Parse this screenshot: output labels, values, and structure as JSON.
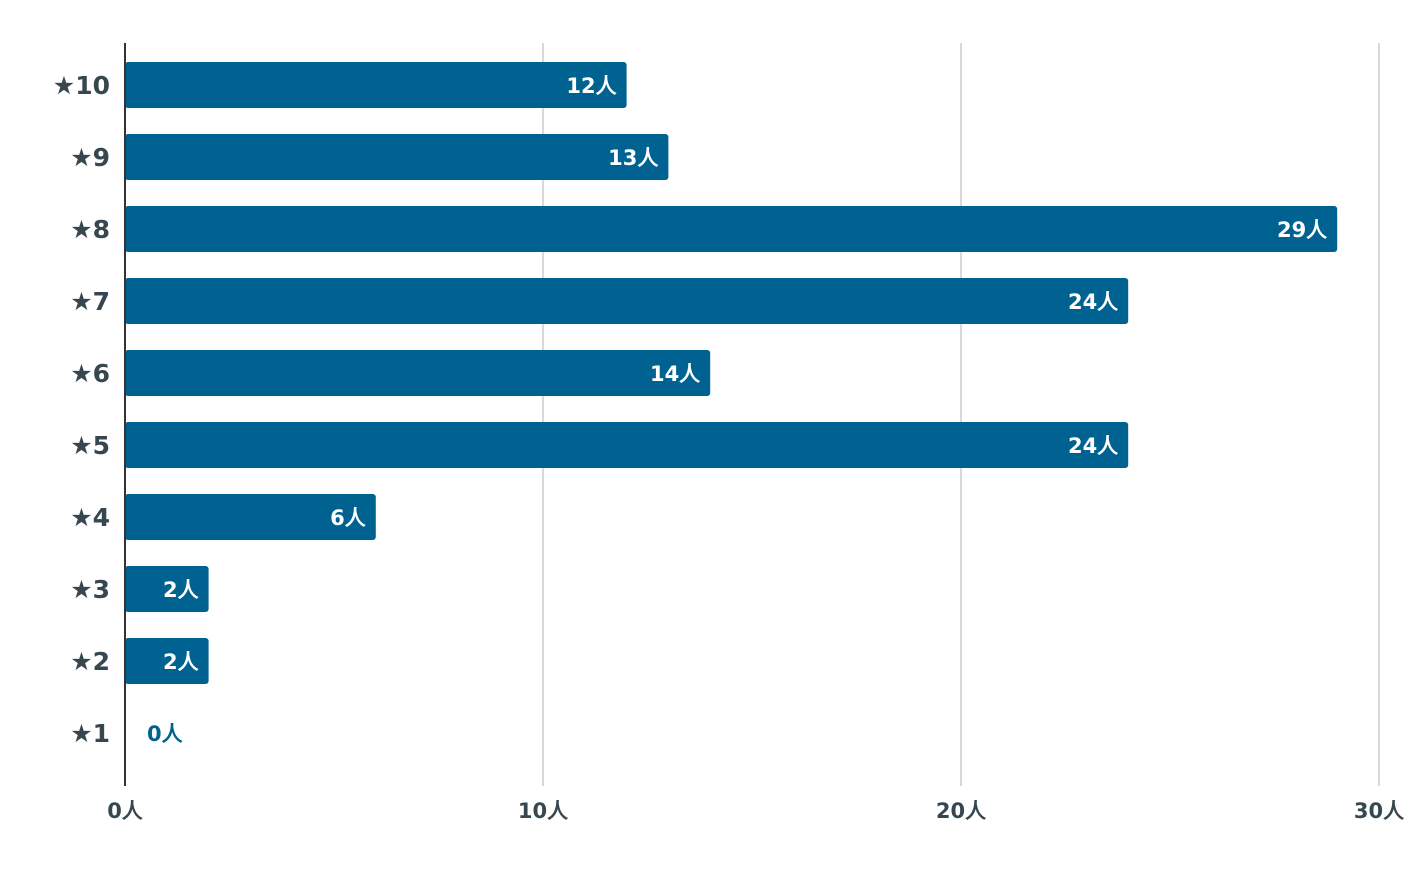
{
  "chart_data": {
    "type": "bar",
    "orientation": "horizontal",
    "categories": [
      "★10",
      "★9",
      "★8",
      "★7",
      "★6",
      "★5",
      "★4",
      "★3",
      "★2",
      "★1"
    ],
    "values": [
      12,
      13,
      29,
      24,
      14,
      24,
      6,
      2,
      2,
      0
    ],
    "value_labels": [
      "12人",
      "13人",
      "29人",
      "24人",
      "14人",
      "24人",
      "6人",
      "2人",
      "2人",
      "0人"
    ],
    "x_ticks": [
      0,
      10,
      20,
      30
    ],
    "x_tick_labels": [
      "0人",
      "10人",
      "20人",
      "30人"
    ],
    "xlim": [
      0,
      30
    ],
    "grid": true,
    "legend": "none",
    "colors": {
      "bar": "#006290",
      "bar_label": "#ffffff",
      "outside_label": "#006290",
      "axis_text": "#37474f",
      "grid": "#cccccc",
      "axis_line": "#333333"
    }
  }
}
